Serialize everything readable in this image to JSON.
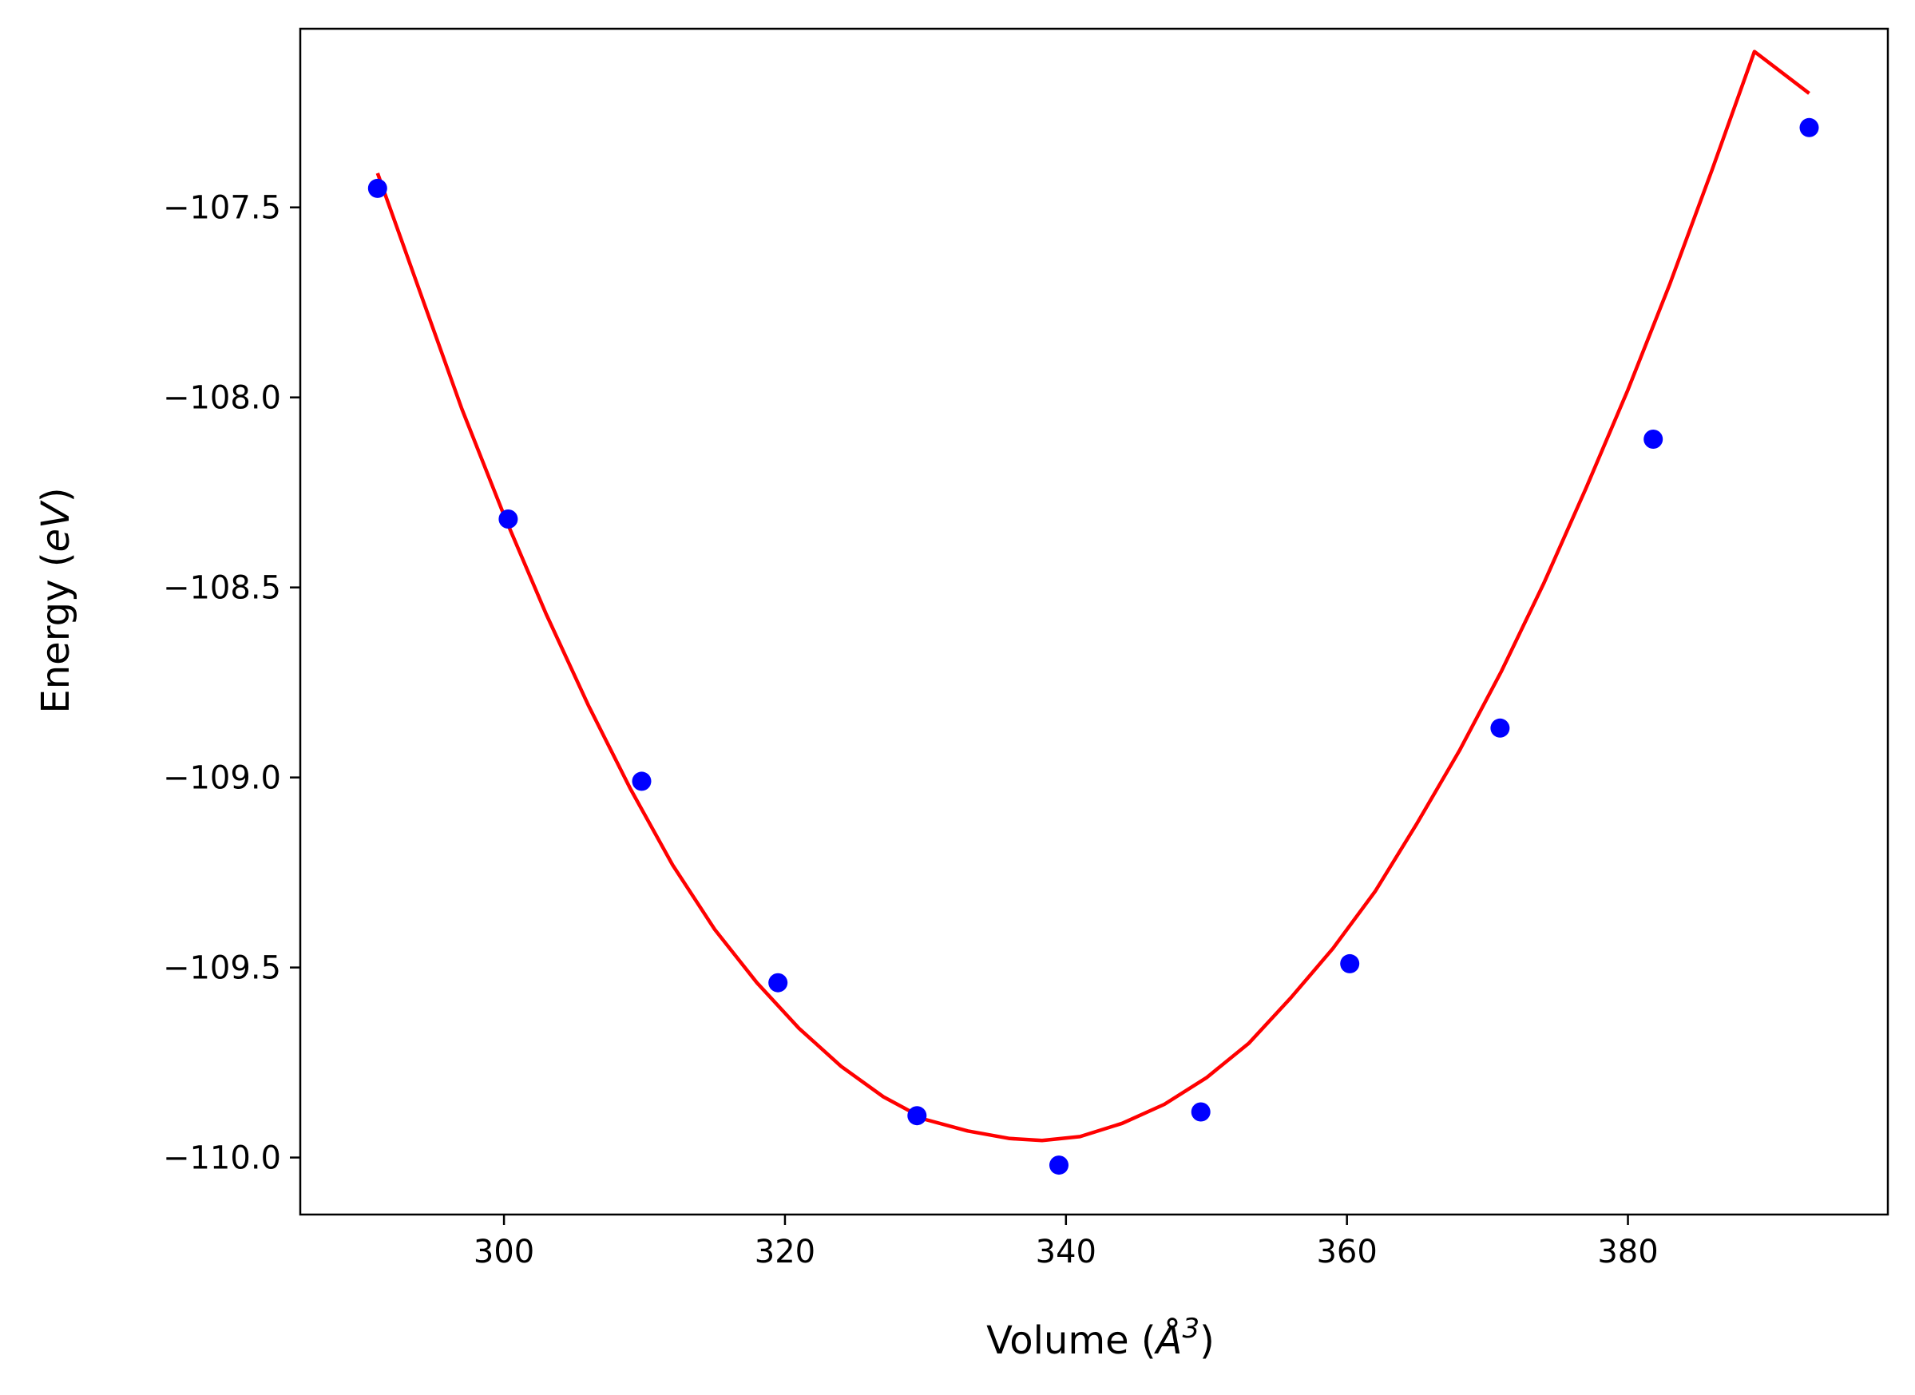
{
  "chart_data": {
    "type": "scatter",
    "title": "",
    "xlabel_main": "Volume (",
    "xlabel_unit": "Å",
    "xlabel_power": "3",
    "xlabel_close": ")",
    "ylabel_main": "Energy (",
    "ylabel_unit": "eV",
    "ylabel_close": ")",
    "xlim": [
      285.5,
      398.5
    ],
    "ylim": [
      -110.15,
      -107.03
    ],
    "x_ticks": [
      300,
      320,
      340,
      360,
      380
    ],
    "x_tick_labels": [
      "300",
      "320",
      "340",
      "360",
      "380"
    ],
    "y_ticks": [
      -107.5,
      -108.0,
      -108.5,
      -109.0,
      -109.5,
      -110.0
    ],
    "y_tick_labels": [
      "−107.5",
      "−108.0",
      "−108.5",
      "−109.0",
      "−109.5",
      "−110.0"
    ],
    "grid": false,
    "legend": "none",
    "series": [
      {
        "kind": "points",
        "color": "#0000ff",
        "x": [
          291.0,
          300.3,
          309.8,
          319.5,
          329.4,
          339.5,
          349.6,
          360.2,
          370.9,
          381.8,
          392.9
        ],
        "y": [
          -107.45,
          -108.32,
          -109.01,
          -109.54,
          -109.89,
          -110.02,
          -109.88,
          -109.49,
          -108.87,
          -108.11,
          -107.29
        ]
      },
      {
        "kind": "fit-curve",
        "color": "#ff0000",
        "x": [
          291.0,
          294.0,
          297.0,
          300.0,
          303.0,
          306.0,
          309.0,
          312.0,
          315.0,
          318.0,
          321.0,
          324.0,
          327.0,
          330.0,
          333.0,
          336.0,
          338.3,
          341.0,
          344.0,
          347.0,
          350.0,
          353.0,
          356.0,
          359.0,
          362.0,
          365.0,
          368.0,
          371.0,
          374.0,
          377.0,
          380.0,
          383.0,
          386.0,
          389.0,
          392.9
        ],
        "y": [
          -107.41,
          -107.72,
          -108.03,
          -108.31,
          -108.57,
          -108.81,
          -109.03,
          -109.23,
          -109.4,
          -109.54,
          -109.66,
          -109.76,
          -109.84,
          -109.9,
          -109.93,
          -109.95,
          -109.955,
          -109.945,
          -109.91,
          -109.86,
          -109.79,
          -109.7,
          -109.58,
          -109.45,
          -109.3,
          -109.12,
          -108.93,
          -108.72,
          -108.49,
          -108.24,
          -107.98,
          -107.7,
          -107.4,
          -107.09,
          -107.2
        ]
      }
    ]
  }
}
